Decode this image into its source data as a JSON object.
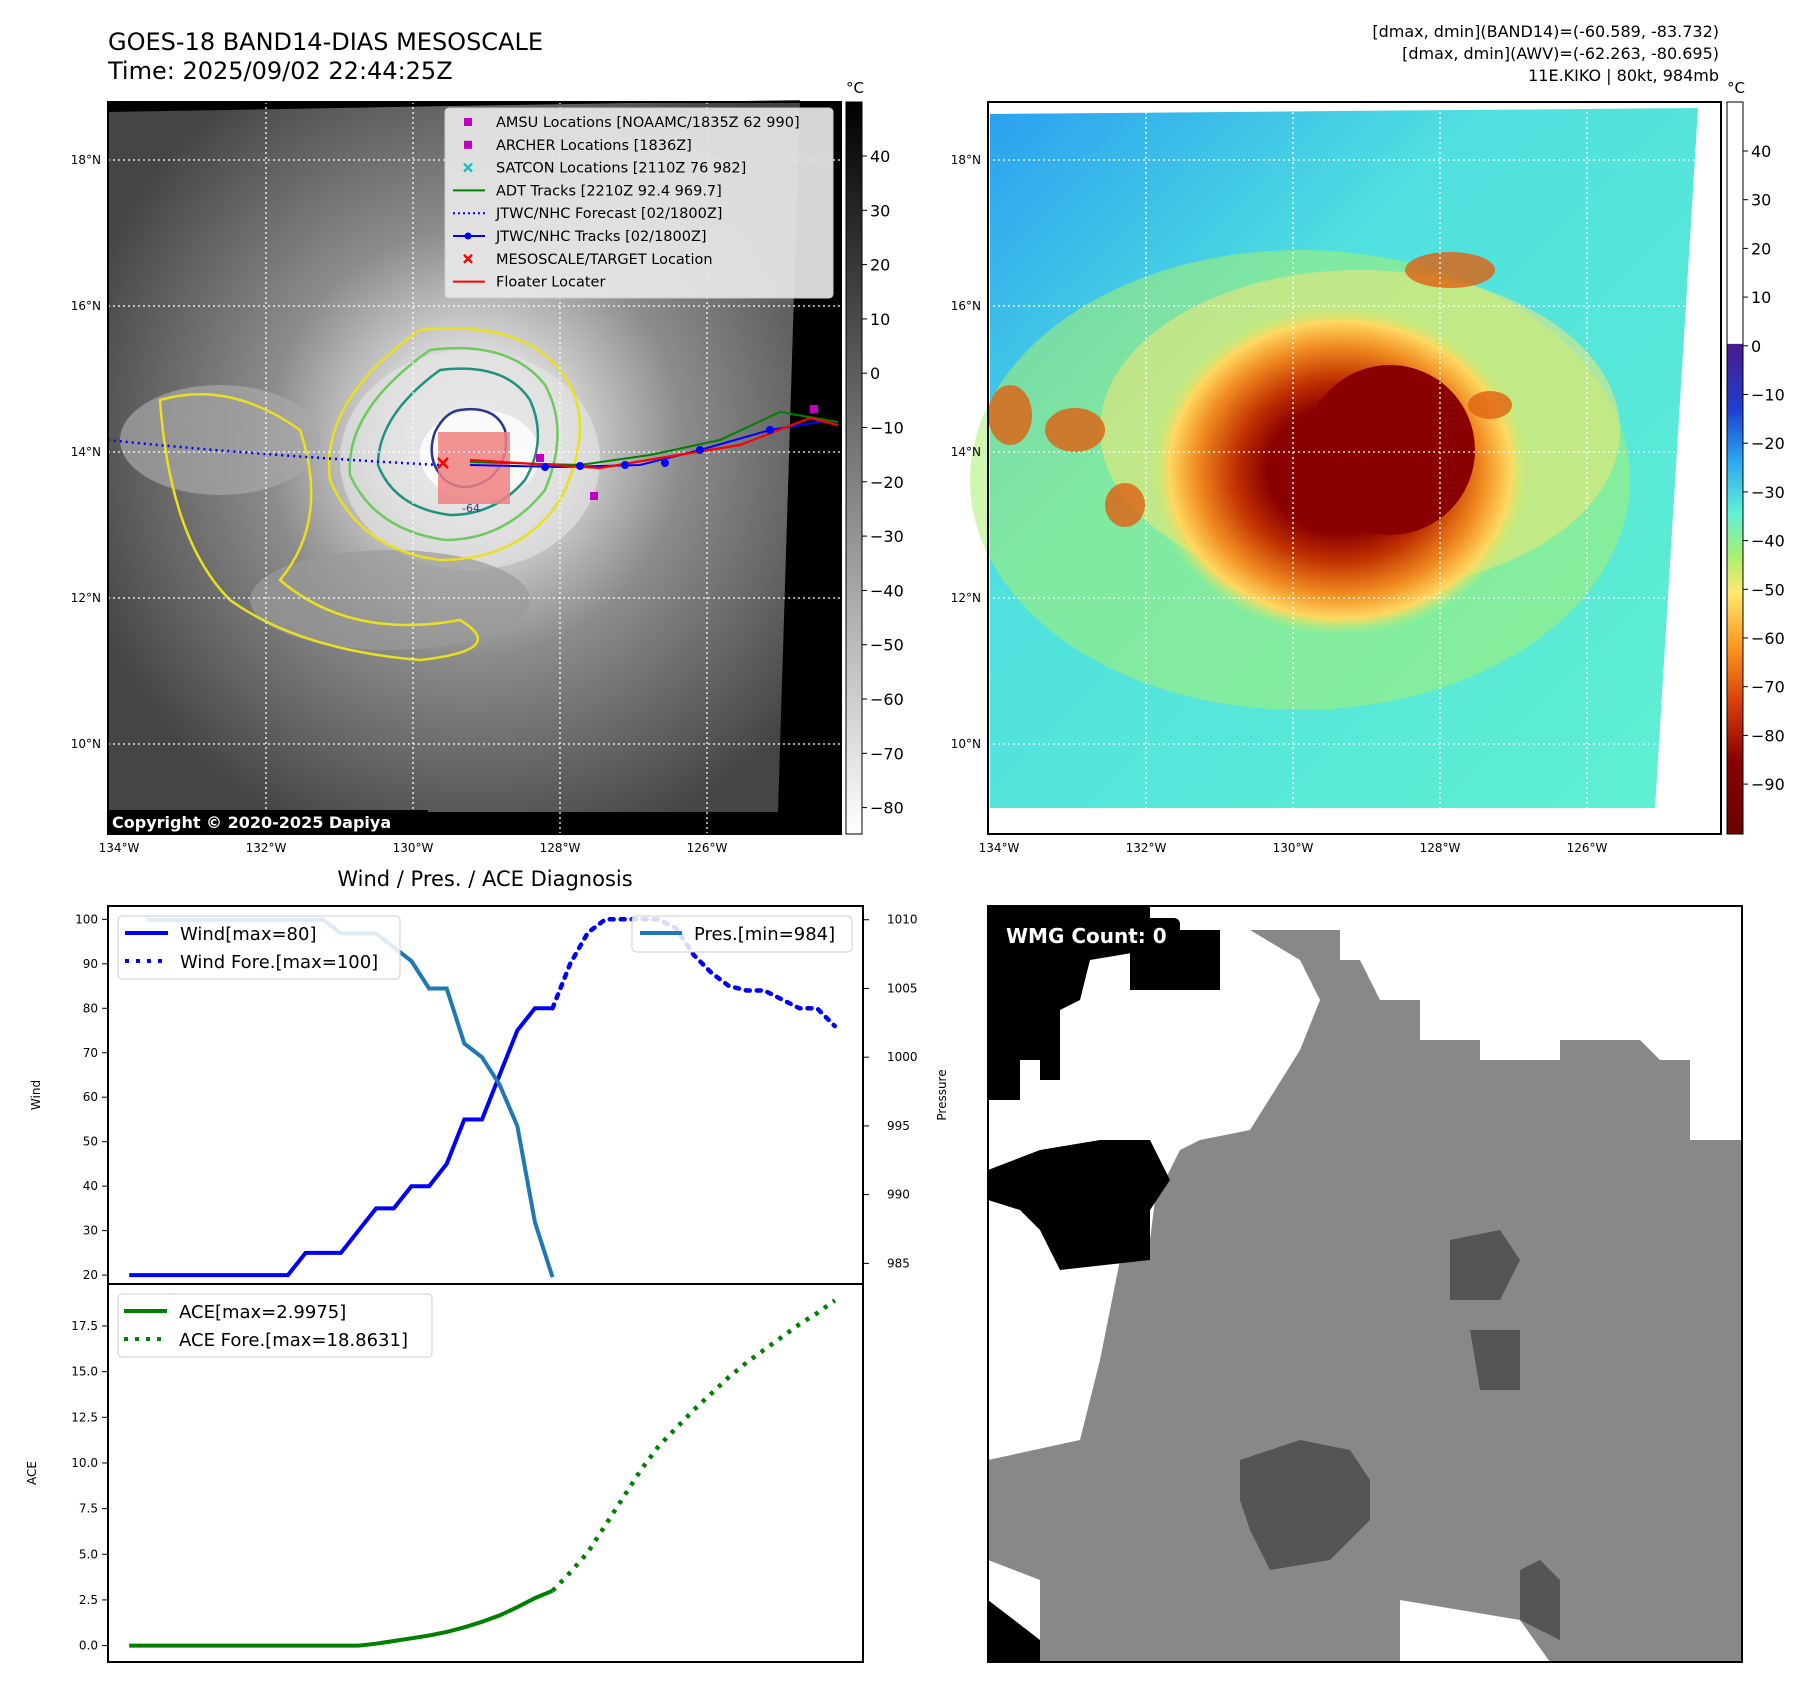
{
  "header": {
    "title_line1": "GOES-18 BAND14-DIAS MESOSCALE",
    "title_line2": "Time: 2025/09/02 22:44:25Z",
    "stats_line1": "[dmax, dmin](BAND14)=(-60.589, -83.732)",
    "stats_line2": "[dmax, dmin](AWV)=(-62.263, -80.695)",
    "stats_line3": "11E.KIKO | 80kt, 984mb"
  },
  "map_axes": {
    "lon_labels": [
      "134°W",
      "132°W",
      "130°W",
      "128°W",
      "126°W"
    ],
    "lat_labels": [
      "18°N",
      "16°N",
      "14°N",
      "12°N",
      "10°N"
    ],
    "lon_range": [
      -134,
      -124
    ],
    "lat_range": [
      9,
      19
    ]
  },
  "ir_panel": {
    "colorbar_unit": "°C",
    "colorbar_ticks": [
      "40",
      "30",
      "20",
      "10",
      "0",
      "−10",
      "−20",
      "−30",
      "−40",
      "−50",
      "−60",
      "−70",
      "−80"
    ],
    "copyright": "Copyright © 2020-2025 Dapiya",
    "contour_label": "-64",
    "legend": [
      {
        "label": "AMSU Locations [NOAAMC/1835Z 62 990]",
        "marker": "square",
        "color": "#c000c0"
      },
      {
        "label": "ARCHER Locations [1836Z]",
        "marker": "square",
        "color": "#c000c0"
      },
      {
        "label": "SATCON Locations [2110Z 76 982]",
        "marker": "x",
        "color": "#20c0c0"
      },
      {
        "label": "ADT Tracks [2210Z 92.4 969.7]",
        "marker": "line",
        "color": "#008000"
      },
      {
        "label": "JTWC/NHC Forecast [02/1800Z]",
        "marker": "dotted",
        "color": "#0000ff"
      },
      {
        "label": "JTWC/NHC Tracks [02/1800Z]",
        "marker": "line-dot",
        "color": "#0000ff"
      },
      {
        "label": "MESOSCALE/TARGET Location",
        "marker": "x",
        "color": "#ff0000"
      },
      {
        "label": "Floater Locater",
        "marker": "line",
        "color": "#ff0000"
      }
    ]
  },
  "awv_panel": {
    "colorbar_unit": "°C",
    "colorbar_ticks": [
      "40",
      "30",
      "20",
      "10",
      "0",
      "−10",
      "−20",
      "−30",
      "−40",
      "−50",
      "−60",
      "−70",
      "−80",
      "−90"
    ]
  },
  "wmg_panel": {
    "label": "WMG Count: 0"
  },
  "colors": {
    "wind": "#0000ff",
    "pressure": "#1f77b4",
    "ace": "#008000"
  },
  "chart_data": [
    {
      "type": "line",
      "title": "Wind / Pres. / ACE Diagnosis",
      "ylabel_left": "Wind",
      "ylabel_right": "Pressure",
      "ylim_left": [
        18,
        103
      ],
      "ylim_right": [
        983.5,
        1011
      ],
      "yticks_left": [
        20,
        30,
        40,
        50,
        60,
        70,
        80,
        90,
        100
      ],
      "yticks_right": [
        985,
        990,
        995,
        1000,
        1005,
        1010
      ],
      "legend_left": [
        "Wind[max=80]",
        "Wind Fore.[max=100]"
      ],
      "legend_right": [
        "Pres.[min=984]"
      ],
      "series": [
        {
          "name": "Wind[max=80]",
          "style": "solid",
          "axis": "left",
          "x": [
            0,
            1,
            2,
            3,
            4,
            5,
            6,
            7,
            8,
            9,
            10,
            11,
            12,
            13,
            14,
            15,
            16,
            17,
            18,
            19,
            20,
            21,
            22,
            23,
            24
          ],
          "values": [
            20,
            20,
            20,
            20,
            20,
            20,
            20,
            20,
            20,
            20,
            25,
            25,
            25,
            30,
            35,
            35,
            40,
            40,
            45,
            55,
            55,
            65,
            75,
            80,
            80
          ]
        },
        {
          "name": "Wind Fore.[max=100]",
          "style": "dotted",
          "axis": "left",
          "x": [
            24,
            25,
            26,
            27,
            28,
            29,
            30,
            31,
            32,
            33,
            34,
            35,
            36,
            37,
            38,
            39,
            40
          ],
          "values": [
            80,
            90,
            97,
            100,
            100,
            100,
            100,
            98,
            92,
            88,
            85,
            84,
            84,
            82,
            80,
            80,
            76
          ]
        },
        {
          "name": "Pres.[min=984]",
          "style": "solid",
          "axis": "right",
          "x": [
            1,
            2,
            3,
            4,
            5,
            6,
            7,
            8,
            9,
            10,
            11,
            12,
            13,
            14,
            15,
            16,
            17,
            18,
            19,
            20,
            21,
            22,
            23,
            24
          ],
          "values": [
            1010,
            1010,
            1010,
            1010,
            1010,
            1010,
            1010,
            1010,
            1010,
            1010,
            1010,
            1009,
            1009,
            1009,
            1008,
            1007,
            1005,
            1005,
            1001,
            1000,
            998,
            995,
            988,
            984
          ]
        }
      ]
    },
    {
      "type": "line",
      "ylabel": "ACE",
      "ylim": [
        -0.9,
        19.8
      ],
      "yticks": [
        "0.0",
        "2.5",
        "5.0",
        "7.5",
        "10.0",
        "12.5",
        "15.0",
        "17.5"
      ],
      "legend": [
        "ACE[max=2.9975]",
        "ACE Fore.[max=18.8631]"
      ],
      "series": [
        {
          "name": "ACE[max=2.9975]",
          "style": "solid",
          "x": [
            0,
            1,
            2,
            3,
            4,
            5,
            6,
            7,
            8,
            9,
            10,
            11,
            12,
            13,
            14,
            15,
            16,
            17,
            18,
            19,
            20,
            21,
            22,
            23,
            24
          ],
          "values": [
            0,
            0,
            0,
            0,
            0,
            0,
            0,
            0,
            0,
            0,
            0,
            0,
            0,
            0,
            0.1,
            0.25,
            0.4,
            0.55,
            0.75,
            1.0,
            1.3,
            1.65,
            2.1,
            2.6,
            3.0
          ]
        },
        {
          "name": "ACE Fore.[max=18.8631]",
          "style": "dotted",
          "x": [
            24,
            25,
            26,
            27,
            28,
            29,
            30,
            31,
            32,
            33,
            34,
            35,
            36,
            37,
            38,
            39,
            40
          ],
          "values": [
            3.0,
            4.0,
            5.1,
            6.6,
            8.1,
            9.6,
            10.9,
            11.9,
            12.9,
            13.8,
            14.7,
            15.5,
            16.2,
            16.9,
            17.6,
            18.2,
            18.9
          ]
        }
      ]
    }
  ]
}
